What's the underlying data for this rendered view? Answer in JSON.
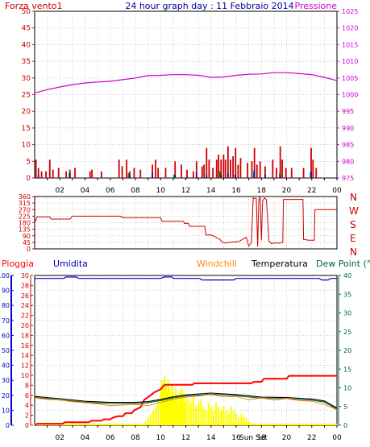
{
  "header": {
    "left_label": "Forza vento1",
    "title": "24 hour graph day : 11 Febbraio 2014",
    "right_label": "Pressione"
  },
  "compass": [
    "N",
    "W",
    "S",
    "E",
    "N"
  ],
  "legend_row": {
    "rain": "Pioggia",
    "humidity": "Umidita",
    "windchill": "Windchill",
    "temperature": "Temperatura",
    "dewpoint": "Dew Point (°C"
  },
  "x_ticks": [
    "02",
    "04",
    "06",
    "08",
    "10",
    "12",
    "14",
    "16",
    "18",
    "20",
    "22",
    "00"
  ],
  "annotation": "Sun Set",
  "colors": {
    "wind_axis": "#cc0000",
    "pressure": "#cc00cc",
    "humidity": "#0000cc",
    "rain_total": "#ff0000",
    "rain_rate": "#ffff00",
    "windchill": "#ff8800",
    "dewpoint": "#006633",
    "temperature": "#000000",
    "direction": "#cc0000"
  },
  "chart_data": [
    {
      "type": "line",
      "name": "wind-pressure",
      "x_unit": "hours",
      "x_range": [
        0,
        24
      ],
      "y_left": {
        "label": "Forza vento1",
        "range": [
          0,
          50
        ],
        "ticks": [
          0,
          5,
          10,
          15,
          20,
          25,
          30,
          35,
          40,
          45,
          50
        ]
      },
      "y_right": {
        "label": "Pressione",
        "range": [
          975,
          1025
        ],
        "ticks": [
          975,
          980,
          985,
          990,
          995,
          1000,
          1005,
          1010,
          1015,
          1020,
          1025
        ]
      },
      "series": [
        {
          "name": "Pressione",
          "axis": "right",
          "x": [
            0,
            1,
            2,
            3,
            4,
            5,
            6,
            7,
            8,
            9,
            10,
            11,
            12,
            13,
            14,
            15,
            16,
            17,
            18,
            19,
            20,
            21,
            22,
            23,
            24
          ],
          "values": [
            1000.5,
            1001.5,
            1002.3,
            1003,
            1003.5,
            1003.8,
            1004,
            1004.5,
            1005,
            1005.7,
            1005.8,
            1006,
            1006,
            1005.8,
            1005.2,
            1005.3,
            1005.8,
            1006.1,
            1006.2,
            1006.6,
            1006.6,
            1006.3,
            1006,
            1005.2,
            1004.2
          ]
        }
      ],
      "wind_gust_bars": {
        "x": [
          0.1,
          0.3,
          0.55,
          0.9,
          1.2,
          1.45,
          1.9,
          2.5,
          2.8,
          3.2,
          4.4,
          4.55,
          5.3,
          6.7,
          6.95,
          7.3,
          7.55,
          7.9,
          8.4,
          9.35,
          9.6,
          9.8,
          10.4,
          11.15,
          11.65,
          12.1,
          12.6,
          12.85,
          13.3,
          13.45,
          13.65,
          13.85,
          14.15,
          14.45,
          14.6,
          14.8,
          15.0,
          15.15,
          15.35,
          15.55,
          15.75,
          15.95,
          16.15,
          16.35,
          16.9,
          17.25,
          17.45,
          17.65,
          17.9,
          18.3,
          18.9,
          19.2,
          19.5,
          19.65,
          19.95,
          20.4,
          21.35,
          21.95,
          22.1,
          22.35
        ],
        "values": [
          5.5,
          3,
          2,
          2,
          5.5,
          2.5,
          3,
          2,
          2.5,
          3,
          2,
          2.5,
          2,
          5.5,
          3.5,
          5.5,
          2,
          3,
          2.5,
          4,
          5.5,
          3,
          3,
          5,
          4,
          2.5,
          2,
          5,
          3.5,
          4,
          9,
          5.5,
          3,
          5.5,
          7,
          5.5,
          7,
          5.5,
          9.5,
          5.5,
          6.5,
          9,
          4,
          6,
          4.5,
          5,
          9,
          4,
          5,
          3.5,
          5.5,
          3,
          9.5,
          5.5,
          3,
          3,
          3,
          9,
          5.5,
          3
        ]
      },
      "wind_avg_bars": {
        "x": [
          0.3,
          2.8,
          7.55,
          9.35,
          11.15,
          12.85,
          13.65,
          14.8,
          15.35,
          15.95,
          17.45,
          18.3,
          19.5,
          21.95
        ],
        "values": [
          1,
          1.5,
          1,
          1.5,
          1,
          1.5,
          1,
          1,
          1.5,
          1,
          2.5,
          1,
          1,
          2
        ]
      },
      "wind_green_bars": {
        "x": [
          2.75,
          7.45,
          11.05,
          14.7,
          15.9,
          17.4,
          19.45,
          21.9
        ],
        "values": [
          1.5,
          1.5,
          1,
          2,
          1,
          2,
          1.5,
          1.5
        ]
      }
    },
    {
      "type": "line",
      "name": "wind-direction",
      "x_unit": "hours",
      "x_range": [
        0,
        24
      ],
      "y_left": {
        "range": [
          0,
          360
        ],
        "ticks": [
          0,
          45,
          90,
          135,
          180,
          225,
          270,
          315,
          360
        ]
      },
      "series": [
        {
          "name": "Direction",
          "x": [
            0,
            0.2,
            1.2,
            1.3,
            2.8,
            3.0,
            6.8,
            7.0,
            10.0,
            10.1,
            11.8,
            11.9,
            12.2,
            12.3,
            13.5,
            13.6,
            14.0,
            14.3,
            14.5,
            14.7,
            14.9,
            15.2,
            15.5,
            16.2,
            16.4,
            16.8,
            17.0,
            17.2,
            17.35,
            17.6,
            17.7,
            17.8,
            17.9,
            18.0,
            18.1,
            18.25,
            18.4,
            18.6,
            18.8,
            19.0,
            19.5,
            19.7,
            19.75,
            20.2,
            21.3,
            21.35,
            21.45,
            21.7,
            22.2,
            22.25,
            24
          ],
          "values": [
            180,
            220,
            220,
            205,
            205,
            225,
            225,
            215,
            215,
            190,
            190,
            175,
            175,
            155,
            155,
            95,
            95,
            85,
            75,
            65,
            45,
            40,
            45,
            50,
            60,
            80,
            20,
            40,
            350,
            345,
            15,
            340,
            355,
            60,
            330,
            350,
            340,
            55,
            35,
            40,
            40,
            45,
            340,
            340,
            340,
            65,
            65,
            60,
            60,
            270,
            270
          ]
        }
      ]
    },
    {
      "type": "line",
      "name": "climate",
      "x_unit": "hours",
      "x_range": [
        0,
        24
      ],
      "y_axes": {
        "rain": {
          "range": [
            0,
            100
          ],
          "ticks": [
            0,
            10,
            20,
            30,
            40,
            50,
            60,
            70,
            80,
            90,
            100
          ]
        },
        "humidity": {
          "range": [
            0,
            30
          ],
          "ticks": [
            0,
            2,
            4,
            6,
            8,
            10,
            12,
            14,
            16,
            18,
            20,
            22,
            24,
            26,
            28,
            30
          ]
        },
        "temperature": {
          "range": [
            0,
            40
          ],
          "ticks": [
            0,
            5,
            10,
            15,
            20,
            25,
            30,
            35,
            40
          ]
        }
      },
      "series": [
        {
          "name": "Umidita",
          "axis": "rain",
          "x": [
            0,
            2.3,
            2.5,
            3.3,
            3.5,
            10.0,
            10.3,
            10.9,
            11.0,
            13.1,
            13.3,
            15.8,
            16.0,
            22.6,
            22.8,
            23.3,
            23.5,
            24
          ],
          "values": [
            98,
            98,
            99,
            99,
            98,
            98,
            99,
            99,
            98,
            98,
            97,
            97,
            98,
            98,
            97,
            97,
            98,
            98
          ]
        },
        {
          "name": "Pioggia",
          "axis": "rain",
          "x": [
            0,
            0.2,
            2.2,
            2.4,
            4.3,
            4.5,
            5.3,
            5.5,
            6.0,
            6.2,
            6.6,
            7.0,
            7.2,
            7.7,
            7.9,
            8.4,
            8.7,
            9.2,
            9.5,
            10.0,
            10.3,
            12.5,
            12.7,
            17.2,
            17.4,
            18.0,
            18.2,
            20.0,
            20.2,
            24
          ],
          "values": [
            0,
            1,
            1,
            2,
            2,
            3,
            3,
            4,
            4,
            5,
            6,
            6,
            8,
            8,
            10,
            12,
            17,
            20,
            22,
            24,
            27,
            27,
            28,
            28,
            29,
            29,
            31,
            31,
            33,
            33
          ]
        },
        {
          "name": "Temperatura",
          "axis": "temperature",
          "x": [
            0,
            2,
            4,
            6,
            8,
            9,
            10,
            11,
            12,
            14,
            16,
            18,
            20,
            22,
            23,
            24
          ],
          "values": [
            7.7,
            7.1,
            6.4,
            6.1,
            6.1,
            6.3,
            6.9,
            7.6,
            8.1,
            8.6,
            8.2,
            7.5,
            7.4,
            7.0,
            6.5,
            4.6
          ]
        },
        {
          "name": "Dew Point",
          "axis": "temperature",
          "x": [
            0,
            2,
            4,
            6,
            8,
            9,
            10,
            11,
            12,
            14,
            16,
            18,
            20,
            22,
            23,
            24
          ],
          "values": [
            7.4,
            6.8,
            6.1,
            5.8,
            5.8,
            6.0,
            6.6,
            7.3,
            7.8,
            8.3,
            7.9,
            7.2,
            7.1,
            6.7,
            6.2,
            4.3
          ]
        },
        {
          "name": "Windchill",
          "axis": "temperature",
          "x": [
            0,
            1,
            2,
            3,
            4,
            5,
            6,
            7,
            8,
            9,
            10,
            11,
            12,
            13,
            14,
            15,
            16,
            17,
            18,
            19,
            20,
            21,
            22,
            23,
            24
          ],
          "values": [
            7.3,
            6.9,
            6.7,
            6.3,
            6.0,
            5.7,
            5.2,
            5.4,
            5.6,
            5.2,
            6.1,
            6.9,
            7.5,
            7.8,
            8.2,
            7.6,
            7.7,
            6.8,
            7.3,
            6.7,
            7.1,
            6.6,
            6.4,
            5.6,
            4.1
          ]
        }
      ],
      "rain_rate": {
        "x": [
          8.8,
          9.0,
          9.2,
          9.4,
          9.6,
          9.8,
          10.0,
          10.1,
          10.2,
          10.3,
          10.4,
          10.5,
          10.6,
          10.7,
          10.8,
          10.9,
          11.0,
          11.1,
          11.2,
          11.3,
          11.4,
          11.5,
          11.6,
          11.7,
          11.8,
          11.9,
          12.0,
          12.2,
          12.4,
          12.6,
          12.8,
          13.0,
          13.2,
          13.4,
          13.6,
          13.8,
          14.0,
          14.2,
          14.4,
          14.6,
          14.8,
          15.0,
          15.2,
          15.4,
          15.6,
          15.8,
          16.0,
          16.2,
          16.4,
          16.6,
          16.8,
          17.0
        ],
        "values": [
          1,
          2,
          3,
          4,
          5,
          7,
          9,
          12,
          10,
          13,
          11,
          9,
          12,
          10,
          8,
          11,
          9,
          7,
          10,
          8,
          6,
          9,
          7,
          10,
          8,
          6,
          8,
          7,
          6,
          8,
          5,
          6,
          7,
          5,
          4,
          6,
          5,
          4,
          6,
          5,
          4,
          5,
          4,
          3,
          5,
          4,
          3,
          2,
          3,
          2,
          2,
          1
        ]
      }
    }
  ]
}
